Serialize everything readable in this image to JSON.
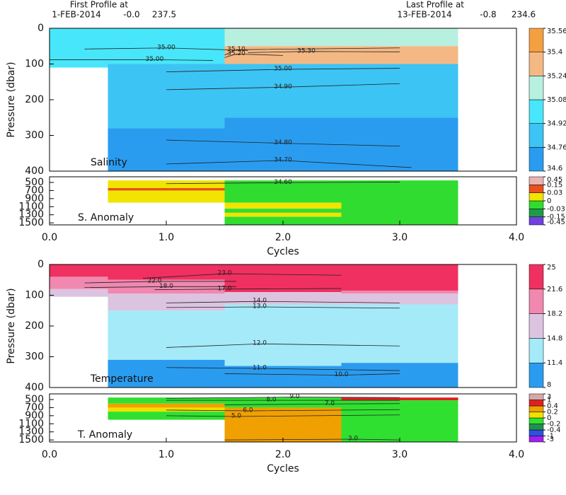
{
  "header": {
    "first_title": "First Profile at",
    "first_date": "1-FEB-2014",
    "first_lat": "-0.0",
    "first_lon": "237.5",
    "last_title": "Last Profile at",
    "last_date": "13-FEB-2014",
    "last_lat": "-0.8",
    "last_lon": "234.6"
  },
  "chart_data": [
    {
      "type": "heatmap",
      "label": "Salinity",
      "ylabel": "Pressure (dbar)",
      "xlim": [
        0,
        4
      ],
      "ylim": [
        0,
        400
      ],
      "yticks": [
        0,
        100,
        200,
        300,
        400
      ],
      "colorbar": {
        "ticks": [
          34.6,
          34.76,
          34.92,
          35.08,
          35.24,
          35.4,
          35.56
        ],
        "colors": [
          "#2a9cf0",
          "#3cc4f4",
          "#48e6fa",
          "#b8f0e0",
          "#f4b884",
          "#f4a040"
        ]
      },
      "columns": [
        {
          "x": [
            0,
            0.5
          ],
          "layers": [
            {
              "y": [
                0,
                110
              ],
              "value": 35.0
            }
          ]
        },
        {
          "x": [
            0.5,
            1.5
          ],
          "layers": [
            {
              "y": [
                0,
                100
              ],
              "value": 35.0
            },
            {
              "y": [
                100,
                280
              ],
              "value": 34.85
            },
            {
              "y": [
                280,
                400
              ],
              "value": 34.7
            }
          ]
        },
        {
          "x": [
            1.5,
            2.5
          ],
          "layers": [
            {
              "y": [
                0,
                50
              ],
              "value": 35.15
            },
            {
              "y": [
                50,
                100
              ],
              "value": 35.3
            },
            {
              "y": [
                100,
                250
              ],
              "value": 34.85
            },
            {
              "y": [
                250,
                400
              ],
              "value": 34.7
            }
          ]
        },
        {
          "x": [
            2.5,
            3.5
          ],
          "layers": [
            {
              "y": [
                0,
                50
              ],
              "value": 35.15
            },
            {
              "y": [
                50,
                100
              ],
              "value": 35.3
            },
            {
              "y": [
                100,
                250
              ],
              "value": 34.85
            },
            {
              "y": [
                250,
                400
              ],
              "value": 34.7
            }
          ]
        }
      ],
      "contours": [
        {
          "label": "35.00",
          "value": 35.0,
          "x": [
            0.3,
            1.0,
            1.7
          ],
          "y": [
            58,
            55,
            62
          ]
        },
        {
          "label": "35.10",
          "value": 35.1,
          "x": [
            1.5,
            1.6,
            3.0
          ],
          "y": [
            75,
            60,
            55
          ]
        },
        {
          "label": "35.20",
          "value": 35.2,
          "x": [
            1.5,
            1.6,
            2.0
          ],
          "y": [
            82,
            72,
            76
          ]
        },
        {
          "label": "35.30",
          "value": 35.3,
          "x": [
            1.7,
            2.2,
            3.0
          ],
          "y": [
            68,
            65,
            66
          ]
        },
        {
          "label": "35.00",
          "value": 35.0,
          "x": [
            0.0,
            0.9,
            1.4
          ],
          "y": [
            88,
            88,
            90
          ]
        },
        {
          "label": "35.00",
          "value": 35.0,
          "x": [
            1.0,
            2.0,
            3.0
          ],
          "y": [
            122,
            115,
            112
          ]
        },
        {
          "label": "34.90",
          "value": 34.9,
          "x": [
            1.0,
            2.0,
            3.0
          ],
          "y": [
            172,
            165,
            155
          ]
        },
        {
          "label": "34.80",
          "value": 34.8,
          "x": [
            1.0,
            2.0,
            3.0
          ],
          "y": [
            313,
            322,
            330
          ]
        },
        {
          "label": "34.70",
          "value": 34.7,
          "x": [
            1.0,
            2.0,
            3.1
          ],
          "y": [
            380,
            370,
            390
          ]
        }
      ]
    },
    {
      "type": "heatmap",
      "label": "S. Anomaly",
      "xlabel": "Cycles",
      "xlim": [
        0,
        4
      ],
      "ylim": [
        360,
        1550
      ],
      "xticks": [
        {
          "value": 0,
          "label": "0.0"
        },
        {
          "value": 1,
          "label": "1.0"
        },
        {
          "value": 2,
          "label": "2.0"
        },
        {
          "value": 3,
          "label": "3.0"
        },
        {
          "value": 4,
          "label": "4.0"
        }
      ],
      "yticks": [
        500,
        700,
        900,
        1100,
        1300,
        1500
      ],
      "colorbar": {
        "ticks": [
          -0.45,
          -0.15,
          -0.03,
          0,
          0.03,
          0.15,
          0.45
        ],
        "colors": [
          "#7040e0",
          "#209a48",
          "#30dc30",
          "#f0e400",
          "#e85020",
          "#e8b4b4"
        ]
      },
      "columns": [
        {
          "x": [
            0.5,
            1.5
          ],
          "layers": [
            {
              "y": [
                450,
                640
              ],
              "value": 0.01
            },
            {
              "y": [
                640,
                700
              ],
              "value": 0.05
            },
            {
              "y": [
                700,
                1000
              ],
              "value": 0.01
            }
          ]
        },
        {
          "x": [
            1.5,
            2.5
          ],
          "layers": [
            {
              "y": [
                450,
                1000
              ],
              "value": -0.01
            },
            {
              "y": [
                1000,
                1150
              ],
              "value": 0.01
            },
            {
              "y": [
                1150,
                1250
              ],
              "value": -0.01
            },
            {
              "y": [
                1250,
                1350
              ],
              "value": 0.01
            },
            {
              "y": [
                1350,
                1550
              ],
              "value": -0.01
            }
          ]
        },
        {
          "x": [
            2.5,
            3.5
          ],
          "layers": [
            {
              "y": [
                450,
                1550
              ],
              "value": -0.01
            }
          ]
        }
      ],
      "contours": [
        {
          "label": "34.60",
          "value": 34.6,
          "x": [
            1.0,
            2.0,
            3.0
          ],
          "y": [
            530,
            505,
            490
          ]
        }
      ]
    },
    {
      "type": "heatmap",
      "label": "Temperature",
      "ylabel": "Pressure (dbar)",
      "xlim": [
        0,
        4
      ],
      "ylim": [
        0,
        400
      ],
      "yticks": [
        0,
        100,
        200,
        300,
        400
      ],
      "colorbar": {
        "ticks": [
          8,
          11.4,
          14.8,
          18.2,
          21.6,
          25
        ],
        "colors": [
          "#2a9cf0",
          "#a4eaf8",
          "#dcc4e0",
          "#f088b0",
          "#f03060"
        ]
      },
      "columns": [
        {
          "x": [
            0,
            0.5
          ],
          "layers": [
            {
              "y": [
                0,
                40
              ],
              "value": 23
            },
            {
              "y": [
                40,
                80
              ],
              "value": 20
            },
            {
              "y": [
                80,
                105
              ],
              "value": 16
            }
          ]
        },
        {
          "x": [
            0.5,
            1.5
          ],
          "layers": [
            {
              "y": [
                0,
                50
              ],
              "value": 23
            },
            {
              "y": [
                50,
                95
              ],
              "value": 20
            },
            {
              "y": [
                95,
                150
              ],
              "value": 16
            },
            {
              "y": [
                150,
                310
              ],
              "value": 12
            },
            {
              "y": [
                310,
                400
              ],
              "value": 10
            }
          ]
        },
        {
          "x": [
            1.5,
            2.5
          ],
          "layers": [
            {
              "y": [
                0,
                90
              ],
              "value": 23
            },
            {
              "y": [
                90,
                130
              ],
              "value": 16
            },
            {
              "y": [
                130,
                330
              ],
              "value": 12
            },
            {
              "y": [
                330,
                400
              ],
              "value": 10
            }
          ]
        },
        {
          "x": [
            2.5,
            3.5
          ],
          "layers": [
            {
              "y": [
                0,
                85
              ],
              "value": 23
            },
            {
              "y": [
                85,
                95
              ],
              "value": 20
            },
            {
              "y": [
                95,
                130
              ],
              "value": 16
            },
            {
              "y": [
                130,
                320
              ],
              "value": 12
            },
            {
              "y": [
                320,
                400
              ],
              "value": 10
            }
          ]
        }
      ],
      "contours": [
        {
          "label": "23.0",
          "value": 23,
          "x": [
            0.8,
            1.5,
            2.5
          ],
          "y": [
            45,
            30,
            35
          ]
        },
        {
          "label": "22.0",
          "value": 22,
          "x": [
            0.3,
            0.9,
            1.6
          ],
          "y": [
            60,
            55,
            55
          ]
        },
        {
          "label": "18.0",
          "value": 18,
          "x": [
            0.3,
            1.0,
            1.6
          ],
          "y": [
            75,
            72,
            72
          ]
        },
        {
          "label": "17.0",
          "value": 17,
          "x": [
            0.9,
            1.5,
            2.5
          ],
          "y": [
            82,
            80,
            78
          ]
        },
        {
          "label": "14.0",
          "value": 14,
          "x": [
            1.0,
            1.8,
            3.0
          ],
          "y": [
            125,
            120,
            125
          ]
        },
        {
          "label": "13.0",
          "value": 13,
          "x": [
            1.0,
            1.8,
            3.0
          ],
          "y": [
            140,
            138,
            142
          ]
        },
        {
          "label": "12.0",
          "value": 12,
          "x": [
            1.0,
            1.8,
            3.0
          ],
          "y": [
            270,
            258,
            265
          ]
        },
        {
          "label": "11.0",
          "value": 11,
          "x": [
            1.0,
            1.8,
            3.0
          ],
          "y": [
            335,
            338,
            345
          ]
        },
        {
          "label": "10.0",
          "value": 10,
          "x": [
            1.5,
            2.5,
            3.0
          ],
          "y": [
            355,
            360,
            355
          ]
        }
      ]
    },
    {
      "type": "heatmap",
      "label": "T. Anomaly",
      "xlabel": "Cycles",
      "xlim": [
        0,
        4
      ],
      "ylim": [
        360,
        1550
      ],
      "xticks": [
        {
          "value": 0,
          "label": "0.0"
        },
        {
          "value": 1,
          "label": "1.0"
        },
        {
          "value": 2,
          "label": "2.0"
        },
        {
          "value": 3,
          "label": "3.0"
        },
        {
          "value": 4,
          "label": "4.0"
        }
      ],
      "yticks": [
        500,
        700,
        900,
        1100,
        1300,
        1500
      ],
      "colorbar": {
        "ticks": [
          -3,
          -1,
          -0.4,
          -0.2,
          0,
          0.2,
          0.4,
          1,
          3
        ],
        "colors": [
          "#a020f0",
          "#3050e0",
          "#209050",
          "#30e030",
          "#f0e000",
          "#f0a000",
          "#e02020",
          "#d8a8a8"
        ]
      },
      "columns": [
        {
          "x": [
            0.5,
            1.5
          ],
          "layers": [
            {
              "y": [
                450,
                600
              ],
              "value": -0.1
            },
            {
              "y": [
                600,
                700
              ],
              "value": 0.3
            },
            {
              "y": [
                700,
                800
              ],
              "value": 0.1
            },
            {
              "y": [
                800,
                1000
              ],
              "value": -0.1
            }
          ]
        },
        {
          "x": [
            1.5,
            2.5
          ],
          "layers": [
            {
              "y": [
                450,
                700
              ],
              "value": -0.1
            },
            {
              "y": [
                700,
                1550
              ],
              "value": 0.3
            }
          ]
        },
        {
          "x": [
            2.5,
            3.5
          ],
          "layers": [
            {
              "y": [
                450,
                520
              ],
              "value": 0.5
            },
            {
              "y": [
                520,
                1550
              ],
              "value": -0.1
            }
          ]
        }
      ],
      "contours": [
        {
          "label": "9.0",
          "value": 9,
          "x": [
            1.0,
            2.1,
            3.0
          ],
          "y": [
            470,
            440,
            450
          ]
        },
        {
          "label": "8.0",
          "value": 8,
          "x": [
            1.0,
            1.9,
            3.0
          ],
          "y": [
            520,
            520,
            520
          ]
        },
        {
          "label": "7.0",
          "value": 7,
          "x": [
            1.5,
            2.4,
            3.0
          ],
          "y": [
            630,
            610,
            600
          ]
        },
        {
          "label": "6.0",
          "value": 6,
          "x": [
            1.0,
            1.7,
            3.0
          ],
          "y": [
            760,
            780,
            750
          ]
        },
        {
          "label": "5.0",
          "value": 5,
          "x": [
            1.0,
            1.6,
            3.0
          ],
          "y": [
            900,
            920,
            880
          ]
        },
        {
          "label": "3.0",
          "value": 3,
          "x": [
            1.5,
            2.6,
            3.0
          ],
          "y": [
            1500,
            1480,
            1500
          ]
        }
      ]
    }
  ]
}
